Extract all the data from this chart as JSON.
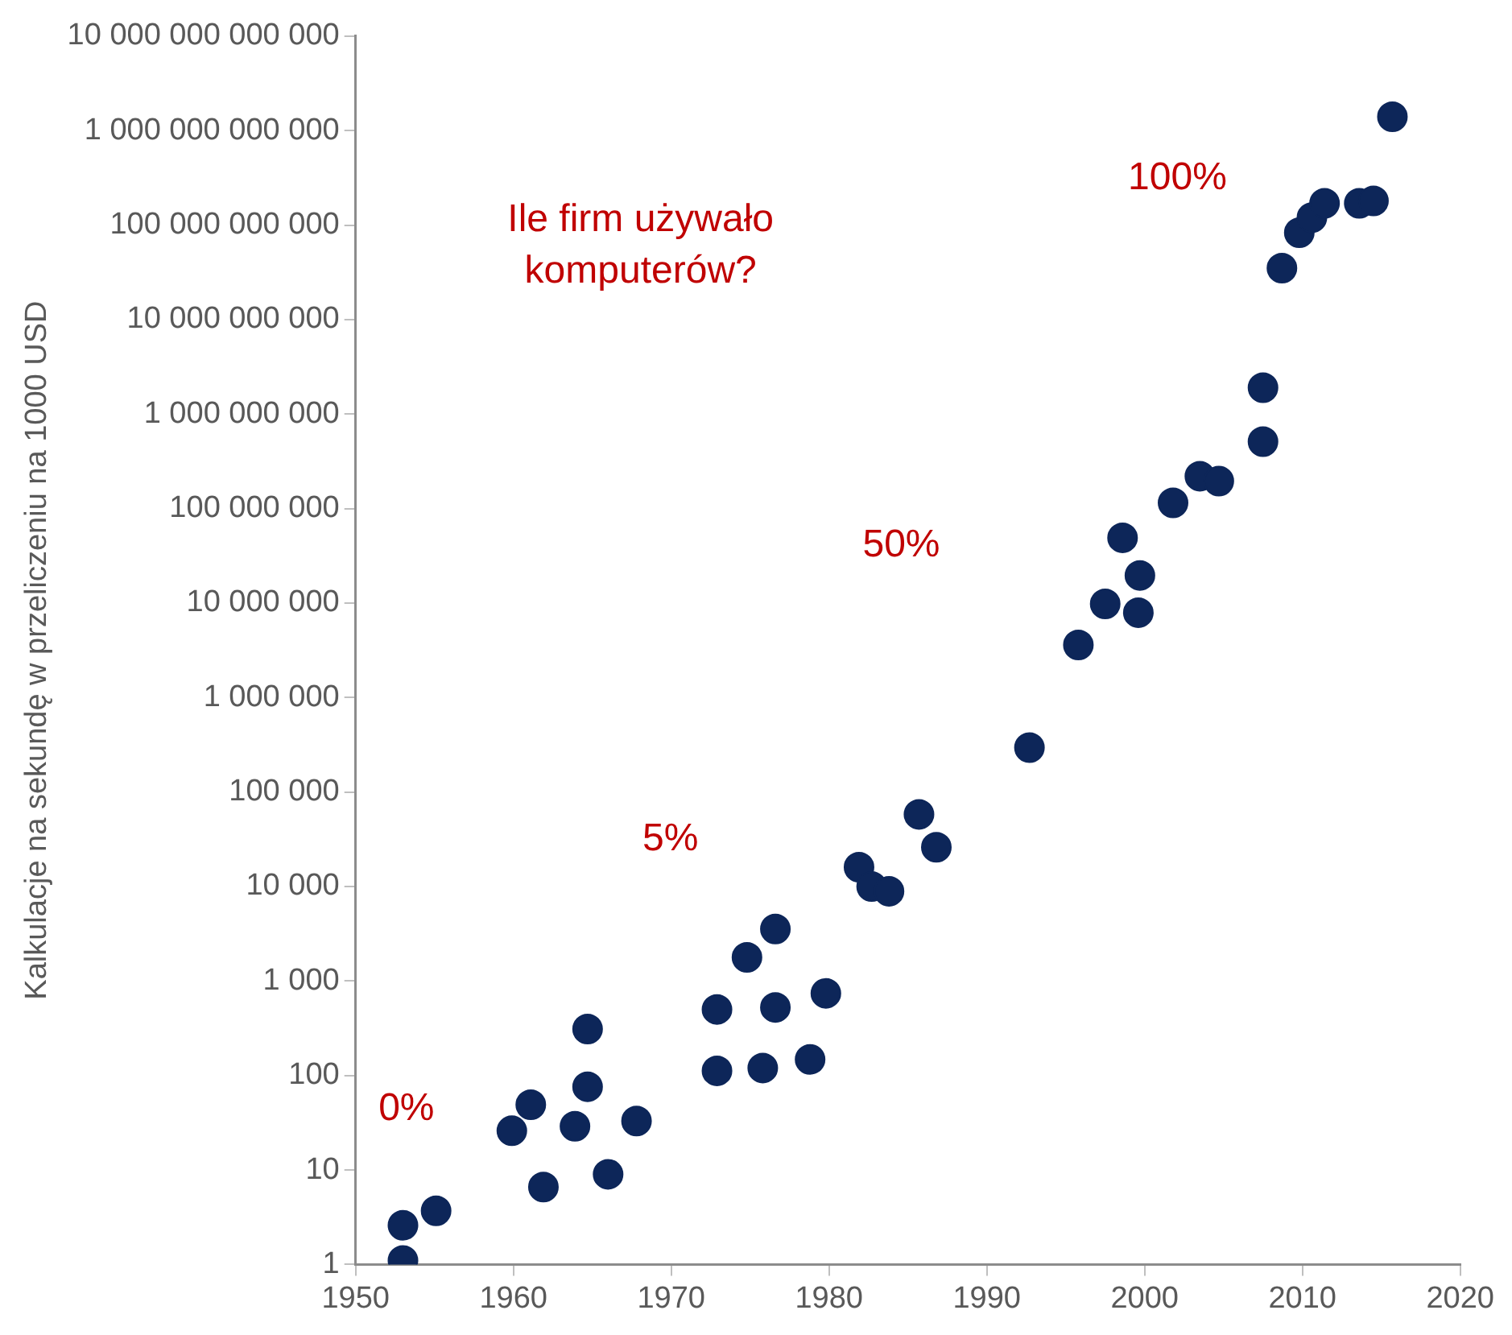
{
  "chart_data": {
    "type": "scatter",
    "ylabel": "Kalkulacje na sekundę w przeliczeniu na 1000 USD",
    "x": [
      1953,
      1953,
      1955.1,
      1959.9,
      1961.1,
      1961.9,
      1963.9,
      1964.7,
      1964.7,
      1966,
      1967.8,
      1972.9,
      1972.9,
      1974.8,
      1975.8,
      1976.6,
      1976.6,
      1978.8,
      1979.8,
      1981.9,
      1982.7,
      1983.8,
      1985.7,
      1986.8,
      1992.7,
      1995.8,
      1997.5,
      1998.6,
      1999.7,
      1999.6,
      2001.8,
      2003.5,
      2004.7,
      2007.5,
      2007.5,
      2008.7,
      2009.8,
      2010.6,
      2011.4,
      2013.6,
      2014.5,
      2015.7
    ],
    "series": [
      {
        "color": "#0d2659",
        "values": [
          1.1,
          2.6,
          3.7,
          26,
          49,
          6.6,
          29,
          310,
          76,
          9,
          33,
          500,
          112,
          1780,
          120,
          3550,
          525,
          148,
          740,
          16000,
          10000,
          8900,
          58000,
          26000,
          295000,
          3600000,
          9800000,
          49000000,
          19600000,
          7900000,
          115000000,
          220000000,
          195000000,
          1900000000,
          510000000,
          35000000000,
          83000000000,
          120000000000,
          170000000000,
          170000000000,
          180000000000,
          1400000000000
        ]
      }
    ],
    "log": "y",
    "grid": false,
    "legend": false,
    "marker": "circle",
    "xlim": [
      1950,
      2020
    ],
    "xticks": [
      1950,
      1960,
      1970,
      1980,
      1990,
      2000,
      2010,
      2020
    ],
    "ylim": [
      1,
      10000000000000
    ],
    "yticks": [
      1,
      10,
      100,
      {
        "value": 1000,
        "label": "1 000"
      },
      {
        "value": 10000,
        "label": "10 000"
      },
      {
        "value": 100000,
        "label": "100 000"
      },
      {
        "value": 1000000,
        "label": "1 000 000"
      },
      {
        "value": 10000000,
        "label": "10 000 000"
      },
      {
        "value": 100000000,
        "label": "100 000 000"
      },
      {
        "value": 1000000000,
        "label": "1 000 000 000"
      },
      {
        "value": 10000000000,
        "label": "10 000 000 000"
      },
      {
        "value": 100000000000,
        "label": "100 000 000 000"
      },
      {
        "value": 1000000000000,
        "label": "1 000 000 000 000"
      },
      {
        "value": 10000000000000,
        "label": "10 000 000 000 000"
      }
    ],
    "annotations": [
      "Ile firm używało komputerów?",
      "0%",
      "5%",
      "50%",
      "100%"
    ]
  }
}
